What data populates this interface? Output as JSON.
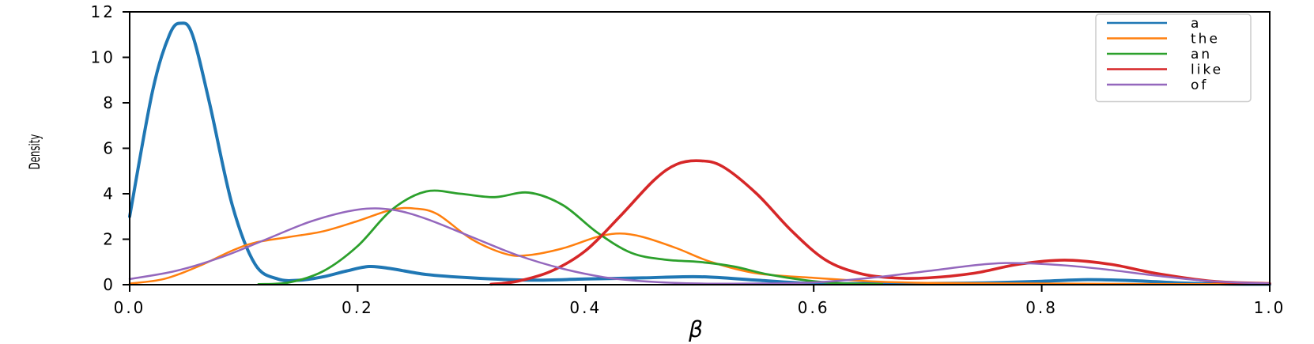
{
  "chart_data": {
    "type": "line",
    "title": "",
    "xlabel": "β",
    "ylabel": "Density",
    "xlim": [
      0.0,
      1.0
    ],
    "ylim": [
      0,
      12
    ],
    "x_ticks": [
      "0.0",
      "0.2",
      "0.4",
      "0.6",
      "0.8",
      "1.0"
    ],
    "y_ticks": [
      "0",
      "2",
      "4",
      "6",
      "8",
      "10",
      "12"
    ],
    "grid": false,
    "legend_position": "top-right",
    "series": [
      {
        "name": "a",
        "color": "#1f77b4",
        "x": [
          0.0,
          0.02,
          0.035,
          0.045,
          0.055,
          0.07,
          0.09,
          0.11,
          0.13,
          0.15,
          0.17,
          0.19,
          0.21,
          0.23,
          0.26,
          0.3,
          0.35,
          0.4,
          0.45,
          0.5,
          0.55,
          0.6,
          0.65,
          0.7,
          0.75,
          0.8,
          0.84,
          0.88,
          0.92,
          0.96,
          1.0
        ],
        "y": [
          3.0,
          8.5,
          11.0,
          11.5,
          11.0,
          8.0,
          3.5,
          0.9,
          0.25,
          0.2,
          0.35,
          0.6,
          0.8,
          0.7,
          0.45,
          0.3,
          0.2,
          0.25,
          0.3,
          0.35,
          0.2,
          0.05,
          0.05,
          0.05,
          0.08,
          0.15,
          0.22,
          0.18,
          0.08,
          0.03,
          0.02
        ]
      },
      {
        "name": "the",
        "color": "#ff7f0e",
        "x": [
          0.0,
          0.03,
          0.06,
          0.09,
          0.11,
          0.14,
          0.17,
          0.2,
          0.23,
          0.25,
          0.27,
          0.3,
          0.33,
          0.35,
          0.38,
          0.41,
          0.43,
          0.45,
          0.48,
          0.51,
          0.55,
          0.6,
          0.65,
          0.7,
          0.8,
          0.9,
          1.0
        ],
        "y": [
          0.05,
          0.25,
          0.8,
          1.5,
          1.85,
          2.1,
          2.35,
          2.8,
          3.3,
          3.35,
          3.1,
          2.0,
          1.35,
          1.3,
          1.6,
          2.1,
          2.25,
          2.1,
          1.6,
          1.0,
          0.5,
          0.3,
          0.15,
          0.08,
          0.05,
          0.03,
          0.02
        ]
      },
      {
        "name": "an",
        "color": "#2ca02c",
        "x": [
          0.113,
          0.14,
          0.17,
          0.2,
          0.23,
          0.26,
          0.29,
          0.32,
          0.35,
          0.38,
          0.41,
          0.44,
          0.47,
          0.5,
          0.53,
          0.56,
          0.6,
          0.63,
          0.66
        ],
        "y": [
          0.02,
          0.1,
          0.6,
          1.7,
          3.3,
          4.1,
          4.0,
          3.85,
          4.05,
          3.5,
          2.3,
          1.4,
          1.1,
          1.0,
          0.8,
          0.45,
          0.15,
          0.05,
          0.02
        ]
      },
      {
        "name": "like",
        "color": "#d62728",
        "x": [
          0.317,
          0.34,
          0.37,
          0.4,
          0.43,
          0.46,
          0.48,
          0.5,
          0.52,
          0.55,
          0.58,
          0.61,
          0.64,
          0.67,
          0.7,
          0.74,
          0.78,
          0.82,
          0.86,
          0.9,
          0.95,
          1.0
        ],
        "y": [
          0.02,
          0.15,
          0.6,
          1.5,
          3.0,
          4.6,
          5.3,
          5.45,
          5.2,
          4.0,
          2.4,
          1.1,
          0.5,
          0.3,
          0.3,
          0.5,
          0.9,
          1.08,
          0.9,
          0.5,
          0.15,
          0.05
        ]
      },
      {
        "name": "of",
        "color": "#9467bd",
        "x": [
          0.0,
          0.04,
          0.08,
          0.12,
          0.16,
          0.2,
          0.23,
          0.26,
          0.3,
          0.34,
          0.38,
          0.42,
          0.46,
          0.5,
          0.55,
          0.6,
          0.65,
          0.7,
          0.75,
          0.78,
          0.82,
          0.86,
          0.9,
          0.95,
          1.0
        ],
        "y": [
          0.25,
          0.6,
          1.2,
          2.0,
          2.8,
          3.3,
          3.3,
          2.9,
          2.1,
          1.3,
          0.7,
          0.3,
          0.12,
          0.05,
          0.05,
          0.1,
          0.3,
          0.6,
          0.9,
          0.95,
          0.85,
          0.65,
          0.4,
          0.15,
          0.05
        ]
      }
    ]
  }
}
